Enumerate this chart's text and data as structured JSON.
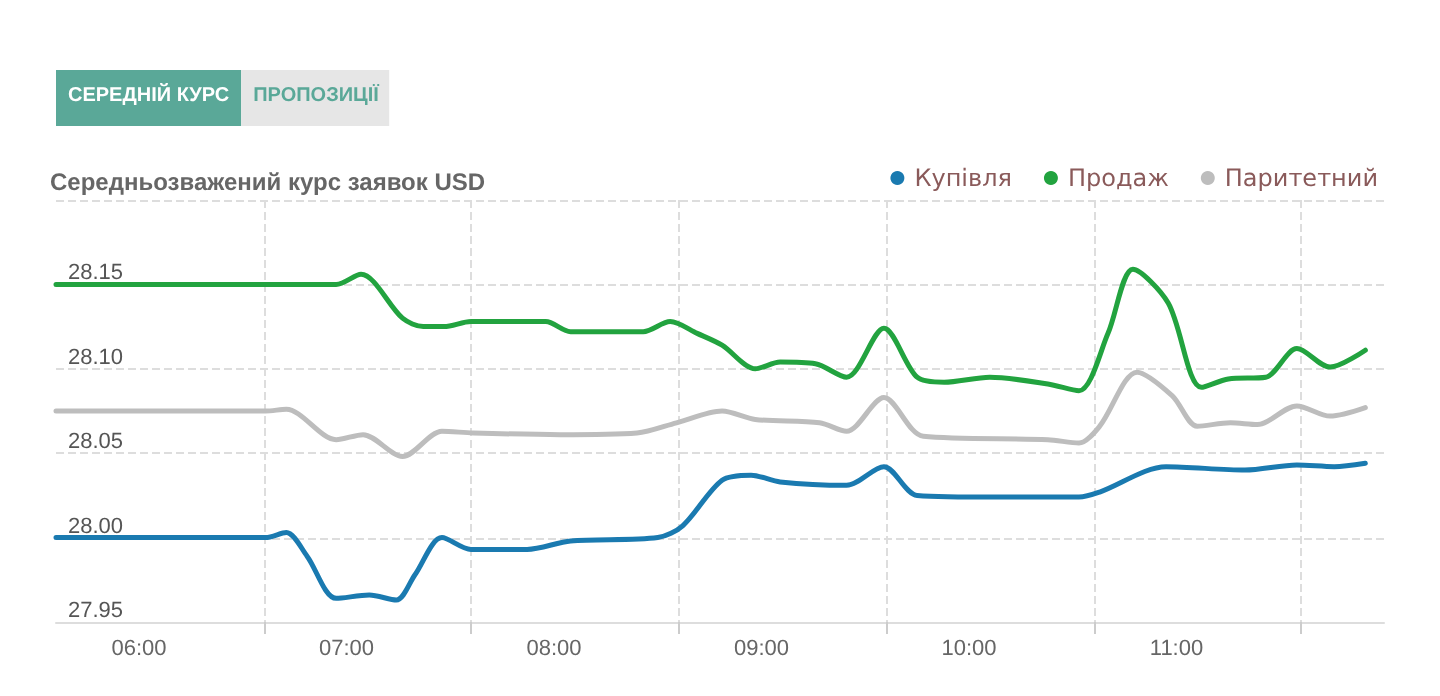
{
  "chart_data": {
    "type": "line",
    "title": "Середньозважений курс заявок USD",
    "annotations": [
      "СЕРЕДНІЙ КУРС",
      "ПРОПОЗИЦІЇ"
    ],
    "series": [
      {
        "name": "Купівля",
        "color": "#1a7ab0",
        "x": [
          5.6,
          6.61,
          6.71,
          6.81,
          6.95,
          7.11,
          7.24,
          7.33,
          7.46,
          7.6,
          7.87,
          8.08,
          8.5,
          8.62,
          8.81,
          8.95,
          9.09,
          9.41,
          9.59,
          9.75,
          10.13,
          10.53,
          10.63,
          10.95,
          11.33,
          11.58,
          11.76,
          11.91
        ],
        "values": [
          28.0,
          28.0,
          28.003,
          27.989,
          27.964,
          27.966,
          27.963,
          27.978,
          28.0,
          27.993,
          27.993,
          27.998,
          28.0,
          28.007,
          28.034,
          28.037,
          28.033,
          28.031,
          28.042,
          28.025,
          28.024,
          28.024,
          28.027,
          28.042,
          28.04,
          28.043,
          28.042,
          28.044
        ]
      },
      {
        "name": "Продаж",
        "color": "#22a33f",
        "x": [
          5.6,
          6.95,
          7.07,
          7.27,
          7.37,
          7.47,
          7.6,
          7.96,
          8.08,
          8.43,
          8.56,
          8.69,
          8.81,
          8.97,
          9.09,
          9.26,
          9.41,
          9.59,
          9.75,
          9.88,
          10.1,
          10.38,
          10.53,
          10.67,
          10.79,
          10.96,
          11.12,
          11.25,
          11.43,
          11.58,
          11.74,
          11.91
        ],
        "values": [
          28.15,
          28.15,
          28.156,
          28.13,
          28.125,
          28.125,
          28.128,
          28.128,
          28.122,
          28.122,
          28.128,
          28.121,
          28.114,
          28.1,
          28.104,
          28.103,
          28.095,
          28.124,
          28.095,
          28.092,
          28.095,
          28.091,
          28.087,
          28.121,
          28.159,
          28.139,
          28.089,
          28.094,
          28.095,
          28.112,
          28.101,
          28.111
        ]
      },
      {
        "name": "Паритетний",
        "color": "#bdbdbd",
        "x": [
          5.6,
          6.61,
          6.71,
          6.95,
          7.08,
          7.27,
          7.46,
          7.61,
          8.03,
          8.4,
          8.59,
          8.81,
          8.97,
          9.28,
          9.41,
          9.59,
          9.78,
          10.38,
          10.53,
          10.63,
          10.81,
          10.98,
          11.1,
          11.26,
          11.39,
          11.58,
          11.74,
          11.91
        ],
        "values": [
          28.075,
          28.075,
          28.076,
          28.058,
          28.061,
          28.048,
          28.063,
          28.062,
          28.061,
          28.062,
          28.068,
          28.075,
          28.07,
          28.068,
          28.063,
          28.083,
          28.06,
          28.058,
          28.056,
          28.066,
          28.098,
          28.084,
          28.066,
          28.068,
          28.067,
          28.078,
          28.072,
          28.077
        ]
      }
    ],
    "xlim": [
      5.6,
      12.0
    ],
    "xticks": [
      {
        "value": 6,
        "label": "06:00"
      },
      {
        "value": 7,
        "label": "07:00"
      },
      {
        "value": 8,
        "label": "08:00"
      },
      {
        "value": 9,
        "label": "09:00"
      },
      {
        "value": 10,
        "label": "10:00"
      },
      {
        "value": 11,
        "label": "11:00"
      },
      {
        "value": 6.6,
        "label": null
      },
      {
        "value": 7.6,
        "label": null
      },
      {
        "value": 8.6,
        "label": null
      },
      {
        "value": 9.6,
        "label": null
      },
      {
        "value": 10.6,
        "label": null
      },
      {
        "value": 11.6,
        "label": null
      }
    ],
    "ylim": [
      27.95,
      28.2
    ],
    "yticks": [
      27.95,
      {
        "value": 28.0,
        "label": "28.00"
      },
      28.05,
      {
        "value": 28.1,
        "label": "28.10"
      },
      28.15,
      {
        "value": 28.2,
        "label": null
      }
    ],
    "grid": true,
    "legend": "top right",
    "marker": "none",
    "line_style": "solid"
  }
}
